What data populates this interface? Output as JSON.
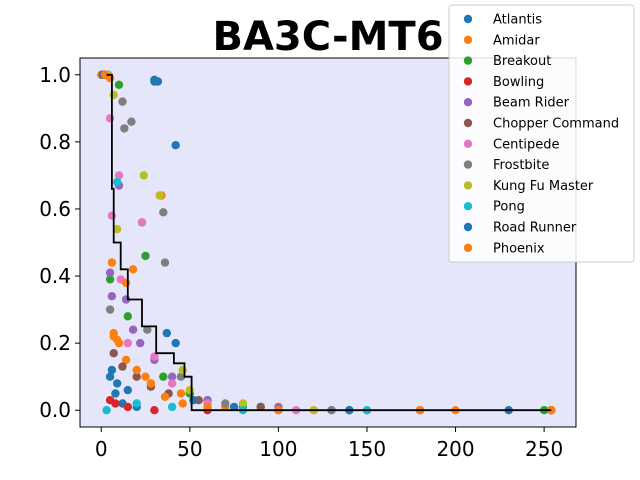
{
  "chart_data": {
    "type": "scatter",
    "title": "BA3C-MT6",
    "xlabel": "",
    "ylabel": "",
    "xlim": [
      -12,
      268
    ],
    "ylim": [
      -0.05,
      1.05
    ],
    "xticks": [
      0,
      50,
      100,
      150,
      200,
      250
    ],
    "yticks": [
      0.0,
      0.2,
      0.4,
      0.6,
      0.8,
      1.0
    ],
    "xtick_labels": [
      "0",
      "50",
      "100",
      "150",
      "200",
      "250"
    ],
    "ytick_labels": [
      "0.0",
      "0.2",
      "0.4",
      "0.6",
      "0.8",
      "1.0"
    ],
    "plot_background": "#e6e6fa",
    "legend_placement": "top-right",
    "series": [
      {
        "name": "Atlantis",
        "color": "#1f77b4",
        "points": [
          [
            0,
            1.0
          ],
          [
            2,
            1.0
          ],
          [
            5,
            0.1
          ],
          [
            8,
            0.05
          ],
          [
            12,
            0.02
          ],
          [
            20,
            0.01
          ],
          [
            30,
            0.98
          ],
          [
            42,
            0.79
          ],
          [
            60,
            0.03
          ],
          [
            90,
            0.01
          ],
          [
            130,
            0.0
          ],
          [
            180,
            0.0
          ],
          [
            230,
            0.0
          ],
          [
            254,
            0.0
          ]
        ]
      },
      {
        "name": "Amidar",
        "color": "#ff7f0e",
        "points": [
          [
            0,
            1.0
          ],
          [
            3,
            1.0
          ],
          [
            6,
            0.44
          ],
          [
            7,
            0.22
          ],
          [
            10,
            0.2
          ],
          [
            14,
            0.15
          ],
          [
            18,
            0.42
          ],
          [
            25,
            0.1
          ],
          [
            34,
            0.64
          ],
          [
            45,
            0.05
          ],
          [
            70,
            0.01
          ],
          [
            120,
            0.0
          ],
          [
            200,
            0.0
          ],
          [
            254,
            0.0
          ]
        ]
      },
      {
        "name": "Breakout",
        "color": "#2ca02c",
        "points": [
          [
            1,
            1.0
          ],
          [
            5,
            0.39
          ],
          [
            10,
            0.97
          ],
          [
            15,
            0.28
          ],
          [
            23,
            0.56
          ],
          [
            25,
            0.46
          ],
          [
            35,
            0.1
          ],
          [
            50,
            0.05
          ],
          [
            80,
            0.01
          ],
          [
            140,
            0.0
          ],
          [
            250,
            0.0
          ]
        ]
      },
      {
        "name": "Bowling",
        "color": "#d62728",
        "points": [
          [
            2,
            1.0
          ],
          [
            5,
            0.03
          ],
          [
            8,
            0.02
          ],
          [
            15,
            0.01
          ],
          [
            30,
            0.0
          ],
          [
            60,
            0.0
          ],
          [
            100,
            0.0
          ]
        ]
      },
      {
        "name": "Beam Rider",
        "color": "#9467bd",
        "points": [
          [
            1,
            1.0
          ],
          [
            5,
            0.41
          ],
          [
            6,
            0.34
          ],
          [
            10,
            0.67
          ],
          [
            14,
            0.33
          ],
          [
            18,
            0.24
          ],
          [
            22,
            0.2
          ],
          [
            30,
            0.15
          ],
          [
            40,
            0.1
          ],
          [
            60,
            0.03
          ],
          [
            100,
            0.01
          ],
          [
            180,
            0.0
          ],
          [
            254,
            0.0
          ]
        ]
      },
      {
        "name": "Chopper Command",
        "color": "#8c564b",
        "points": [
          [
            2,
            1.0
          ],
          [
            7,
            0.17
          ],
          [
            12,
            0.13
          ],
          [
            20,
            0.1
          ],
          [
            28,
            0.07
          ],
          [
            38,
            0.05
          ],
          [
            55,
            0.03
          ],
          [
            90,
            0.01
          ],
          [
            150,
            0.0
          ],
          [
            254,
            0.0
          ]
        ]
      },
      {
        "name": "Centipede",
        "color": "#e377c2",
        "points": [
          [
            3,
            1.0
          ],
          [
            5,
            0.87
          ],
          [
            6,
            0.58
          ],
          [
            10,
            0.7
          ],
          [
            11,
            0.39
          ],
          [
            15,
            0.2
          ],
          [
            23,
            0.56
          ],
          [
            30,
            0.16
          ],
          [
            40,
            0.08
          ],
          [
            60,
            0.02
          ],
          [
            110,
            0.0
          ],
          [
            254,
            0.0
          ]
        ]
      },
      {
        "name": "Frostbite",
        "color": "#7f7f7f",
        "points": [
          [
            4,
            1.0
          ],
          [
            5,
            0.3
          ],
          [
            12,
            0.92
          ],
          [
            13,
            0.84
          ],
          [
            17,
            0.86
          ],
          [
            26,
            0.24
          ],
          [
            35,
            0.59
          ],
          [
            36,
            0.44
          ],
          [
            45,
            0.1
          ],
          [
            70,
            0.02
          ],
          [
            130,
            0.0
          ],
          [
            254,
            0.0
          ]
        ]
      },
      {
        "name": "Kung Fu Master",
        "color": "#bcbd22",
        "points": [
          [
            4,
            1.0
          ],
          [
            7,
            0.94
          ],
          [
            9,
            0.54
          ],
          [
            24,
            0.7
          ],
          [
            33,
            0.64
          ],
          [
            46,
            0.12
          ],
          [
            50,
            0.06
          ],
          [
            80,
            0.02
          ],
          [
            120,
            0.0
          ],
          [
            254,
            0.0
          ]
        ]
      },
      {
        "name": "Pong",
        "color": "#17becf",
        "points": [
          [
            3,
            0.0
          ],
          [
            9,
            0.68
          ],
          [
            20,
            0.02
          ],
          [
            40,
            0.01
          ],
          [
            80,
            0.0
          ],
          [
            150,
            0.0
          ],
          [
            254,
            0.0
          ]
        ]
      },
      {
        "name": "Road Runner",
        "color": "#1f77b4",
        "points": [
          [
            1,
            1.0
          ],
          [
            6,
            0.12
          ],
          [
            9,
            0.08
          ],
          [
            15,
            0.06
          ],
          [
            30,
            0.985
          ],
          [
            32,
            0.98
          ],
          [
            37,
            0.23
          ],
          [
            42,
            0.2
          ],
          [
            52,
            0.03
          ],
          [
            75,
            0.01
          ],
          [
            140,
            0.0
          ],
          [
            254,
            0.0
          ]
        ]
      },
      {
        "name": "Phoenix",
        "color": "#ff7f0e",
        "points": [
          [
            2,
            1.0
          ],
          [
            5,
            0.99
          ],
          [
            7,
            0.23
          ],
          [
            9,
            0.21
          ],
          [
            14,
            0.38
          ],
          [
            20,
            0.12
          ],
          [
            28,
            0.08
          ],
          [
            36,
            0.04
          ],
          [
            46,
            0.02
          ],
          [
            60,
            0.01
          ],
          [
            100,
            0.0
          ],
          [
            180,
            0.0
          ],
          [
            254,
            0.0
          ]
        ]
      }
    ],
    "median_line": {
      "color": "#000000",
      "points": [
        [
          3,
          1.0
        ],
        [
          6,
          1.0
        ],
        [
          6,
          0.66
        ],
        [
          7,
          0.66
        ],
        [
          7,
          0.5
        ],
        [
          11,
          0.5
        ],
        [
          11,
          0.42
        ],
        [
          15,
          0.42
        ],
        [
          15,
          0.33
        ],
        [
          23,
          0.33
        ],
        [
          23,
          0.25
        ],
        [
          31,
          0.25
        ],
        [
          31,
          0.17
        ],
        [
          41,
          0.17
        ],
        [
          41,
          0.14
        ],
        [
          47,
          0.14
        ],
        [
          47,
          0.1
        ],
        [
          51,
          0.1
        ],
        [
          51,
          0.0
        ],
        [
          254,
          0.0
        ]
      ]
    }
  }
}
